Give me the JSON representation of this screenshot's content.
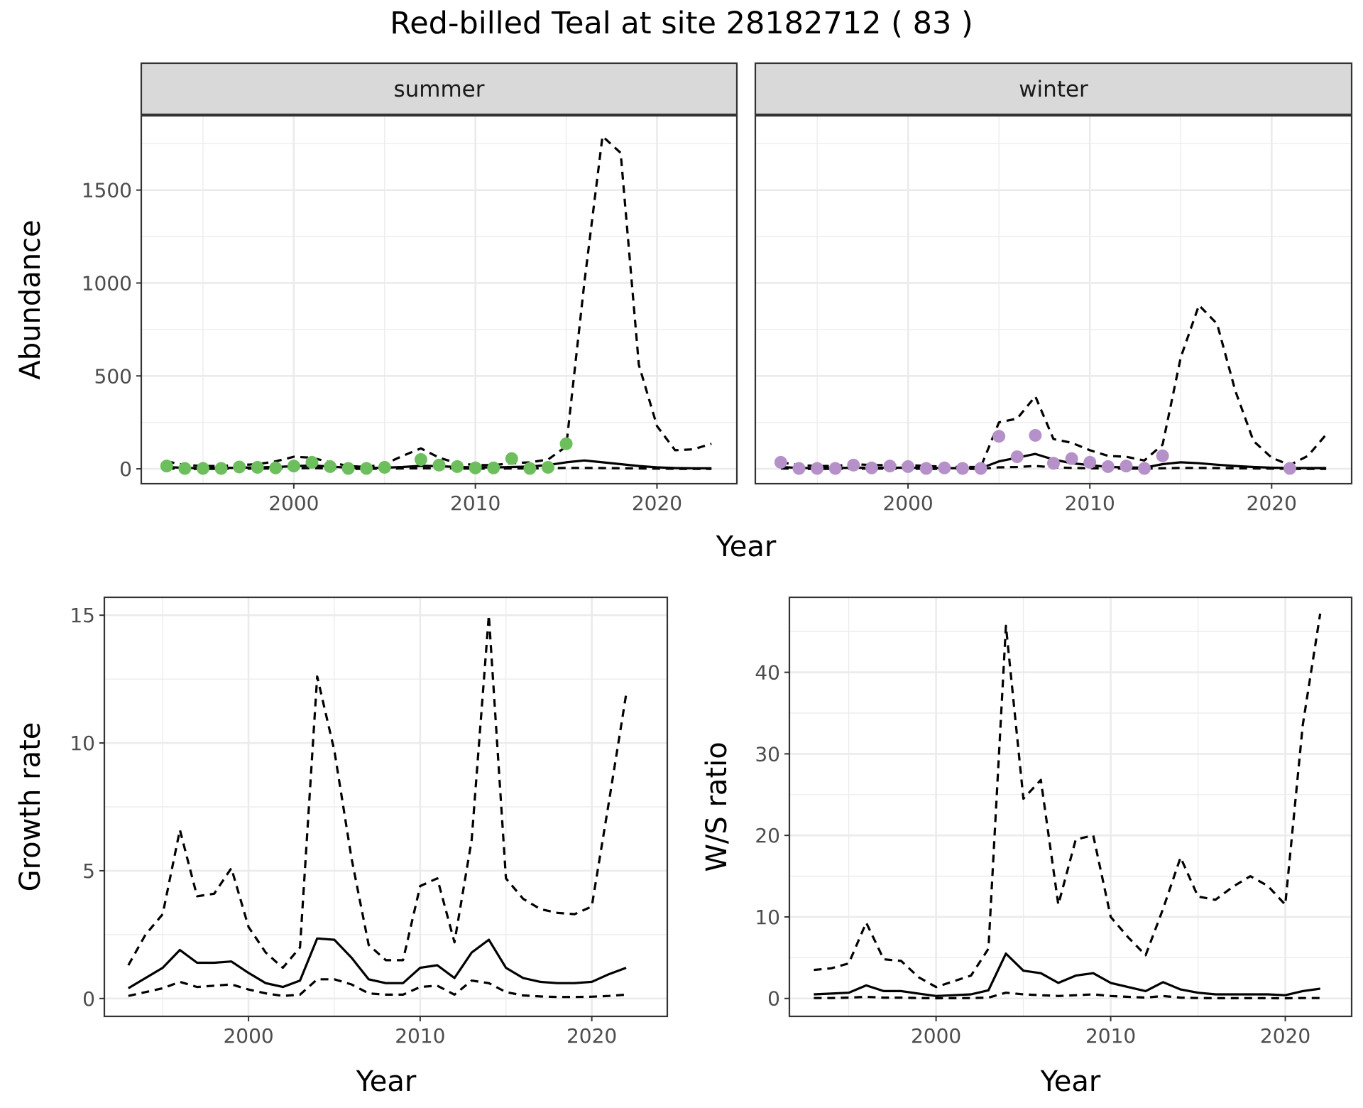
{
  "figure": {
    "title": "Red-billed Teal at site 28182712 ( 83 )"
  },
  "colors": {
    "summer_points": "#6cbf5c",
    "winter_points": "#b590c9",
    "line": "#000000",
    "strip_fill": "#d9d9d9",
    "grid": "#ebebeb",
    "axis_text": "#4d4d4d"
  },
  "chart_data": [
    {
      "type": "line",
      "facet": "summer",
      "strip_label": "summer",
      "ylabel": "Abundance",
      "xlabel": "Year",
      "xlim": [
        1991.6,
        2024.4
      ],
      "ylim": [
        -80,
        1900
      ],
      "x_ticks": [
        2000,
        2010,
        2020
      ],
      "y_ticks": [
        0,
        500,
        1000,
        1500
      ],
      "points": {
        "x": [
          1993,
          1994,
          1995,
          1996,
          1997,
          1998,
          1999,
          2000,
          2001,
          2002,
          2003,
          2004,
          2005,
          2007,
          2008,
          2009,
          2010,
          2011,
          2012,
          2013,
          2014,
          2015
        ],
        "y": [
          15,
          2,
          2,
          2,
          10,
          8,
          5,
          15,
          35,
          12,
          2,
          2,
          8,
          50,
          20,
          12,
          5,
          5,
          55,
          2,
          8,
          135
        ]
      },
      "estimate": {
        "x": [
          1993,
          1994,
          1995,
          1996,
          1997,
          1998,
          1999,
          2000,
          2001,
          2002,
          2003,
          2004,
          2005,
          2006,
          2007,
          2008,
          2009,
          2010,
          2011,
          2012,
          2013,
          2014,
          2015,
          2016,
          2017,
          2018,
          2019,
          2020,
          2021,
          2022,
          2023
        ],
        "y": [
          10,
          5,
          4,
          4,
          6,
          8,
          10,
          14,
          18,
          12,
          6,
          4,
          6,
          10,
          16,
          14,
          10,
          8,
          7,
          10,
          12,
          20,
          35,
          45,
          35,
          25,
          15,
          8,
          4,
          3,
          3
        ]
      },
      "upper": {
        "x": [
          1993,
          1994,
          1995,
          1996,
          1997,
          1998,
          1999,
          2000,
          2001,
          2002,
          2003,
          2004,
          2005,
          2006,
          2007,
          2008,
          2009,
          2010,
          2011,
          2012,
          2013,
          2014,
          2015,
          2016,
          2017,
          2018,
          2019,
          2020,
          2021,
          2022,
          2023
        ],
        "y": [
          40,
          20,
          15,
          15,
          20,
          25,
          40,
          65,
          60,
          35,
          15,
          10,
          25,
          70,
          110,
          60,
          30,
          20,
          20,
          30,
          35,
          50,
          120,
          1000,
          1790,
          1700,
          560,
          230,
          100,
          105,
          135
        ]
      },
      "lower": {
        "x": [
          1993,
          1994,
          1995,
          1996,
          1997,
          1998,
          1999,
          2000,
          2001,
          2002,
          2003,
          2004,
          2005,
          2006,
          2007,
          2008,
          2009,
          2010,
          2011,
          2012,
          2013,
          2014,
          2015,
          2016,
          2017,
          2018,
          2019,
          2020,
          2021,
          2022,
          2023
        ],
        "y": [
          2,
          0,
          0,
          0,
          1,
          1,
          2,
          3,
          4,
          2,
          0,
          0,
          1,
          2,
          3,
          3,
          2,
          1,
          1,
          2,
          2,
          3,
          5,
          5,
          4,
          3,
          2,
          1,
          0,
          0,
          0
        ]
      }
    },
    {
      "type": "line",
      "facet": "winter",
      "strip_label": "winter",
      "ylabel": "Abundance",
      "xlabel": "Year",
      "xlim": [
        1991.6,
        2024.4
      ],
      "ylim": [
        -80,
        1900
      ],
      "x_ticks": [
        2000,
        2010,
        2020
      ],
      "y_ticks": [
        0,
        500,
        1000,
        1500
      ],
      "points": {
        "x": [
          1993,
          1994,
          1995,
          1996,
          1997,
          1998,
          1999,
          2000,
          2001,
          2002,
          2003,
          2004,
          2005,
          2006,
          2007,
          2008,
          2009,
          2010,
          2011,
          2012,
          2013,
          2014,
          2021
        ],
        "y": [
          35,
          2,
          2,
          2,
          20,
          5,
          15,
          12,
          2,
          5,
          2,
          2,
          175,
          65,
          180,
          30,
          55,
          35,
          12,
          15,
          2,
          70,
          2
        ]
      },
      "estimate": {
        "x": [
          1993,
          1994,
          1995,
          1996,
          1997,
          1998,
          1999,
          2000,
          2001,
          2002,
          2003,
          2004,
          2005,
          2006,
          2007,
          2008,
          2009,
          2010,
          2011,
          2012,
          2013,
          2014,
          2015,
          2016,
          2017,
          2018,
          2019,
          2020,
          2021,
          2022,
          2023
        ],
        "y": [
          10,
          5,
          4,
          4,
          6,
          6,
          6,
          6,
          5,
          4,
          3,
          3,
          40,
          60,
          80,
          50,
          30,
          20,
          10,
          8,
          6,
          25,
          35,
          30,
          22,
          15,
          10,
          6,
          4,
          4,
          4
        ]
      },
      "upper": {
        "x": [
          1993,
          1994,
          1995,
          1996,
          1997,
          1998,
          1999,
          2000,
          2001,
          2002,
          2003,
          2004,
          2005,
          2006,
          2007,
          2008,
          2009,
          2010,
          2011,
          2012,
          2013,
          2014,
          2015,
          2016,
          2017,
          2018,
          2019,
          2020,
          2021,
          2022,
          2023
        ],
        "y": [
          35,
          20,
          15,
          15,
          25,
          20,
          20,
          20,
          15,
          12,
          10,
          10,
          250,
          270,
          390,
          160,
          140,
          100,
          70,
          65,
          45,
          130,
          600,
          880,
          780,
          420,
          150,
          60,
          20,
          70,
          185
        ]
      },
      "lower": {
        "x": [
          1993,
          1994,
          1995,
          1996,
          1997,
          1998,
          1999,
          2000,
          2001,
          2002,
          2003,
          2004,
          2005,
          2006,
          2007,
          2008,
          2009,
          2010,
          2011,
          2012,
          2013,
          2014,
          2015,
          2016,
          2017,
          2018,
          2019,
          2020,
          2021,
          2022,
          2023
        ],
        "y": [
          2,
          0,
          0,
          0,
          1,
          1,
          1,
          1,
          0,
          0,
          0,
          0,
          8,
          10,
          15,
          8,
          5,
          3,
          2,
          1,
          1,
          3,
          5,
          5,
          4,
          3,
          2,
          1,
          0,
          0,
          0
        ]
      }
    },
    {
      "type": "line",
      "facet": "growth",
      "ylabel": "Growth rate",
      "xlabel": "Year",
      "xlim": [
        1991.6,
        2024.4
      ],
      "ylim": [
        -0.7,
        15.7
      ],
      "x_ticks": [
        2000,
        2010,
        2020
      ],
      "y_ticks": [
        0,
        5,
        10,
        15
      ],
      "estimate": {
        "x": [
          1993,
          1994,
          1995,
          1996,
          1997,
          1998,
          1999,
          2000,
          2001,
          2002,
          2003,
          2004,
          2005,
          2006,
          2007,
          2008,
          2009,
          2010,
          2011,
          2012,
          2013,
          2014,
          2015,
          2016,
          2017,
          2018,
          2019,
          2020,
          2021,
          2022
        ],
        "y": [
          0.4,
          0.8,
          1.2,
          1.9,
          1.4,
          1.4,
          1.45,
          1.0,
          0.6,
          0.45,
          0.7,
          2.35,
          2.3,
          1.6,
          0.75,
          0.6,
          0.6,
          1.2,
          1.3,
          0.8,
          1.8,
          2.3,
          1.2,
          0.8,
          0.65,
          0.6,
          0.6,
          0.65,
          0.95,
          1.2
        ]
      },
      "upper": {
        "x": [
          1993,
          1994,
          1995,
          1996,
          1997,
          1998,
          1999,
          2000,
          2001,
          2002,
          2003,
          2004,
          2005,
          2006,
          2007,
          2008,
          2009,
          2010,
          2011,
          2012,
          2013,
          2014,
          2015,
          2016,
          2017,
          2018,
          2019,
          2020,
          2021,
          2022
        ],
        "y": [
          1.3,
          2.5,
          3.3,
          6.6,
          4.0,
          4.1,
          5.1,
          2.8,
          1.8,
          1.2,
          2.0,
          12.6,
          9.7,
          5.5,
          2.1,
          1.5,
          1.5,
          4.4,
          4.7,
          2.2,
          6.2,
          15.0,
          4.7,
          3.9,
          3.5,
          3.35,
          3.3,
          3.6,
          7.7,
          11.9
        ]
      },
      "lower": {
        "x": [
          1993,
          1994,
          1995,
          1996,
          1997,
          1998,
          1999,
          2000,
          2001,
          2002,
          2003,
          2004,
          2005,
          2006,
          2007,
          2008,
          2009,
          2010,
          2011,
          2012,
          2013,
          2014,
          2015,
          2016,
          2017,
          2018,
          2019,
          2020,
          2021,
          2022
        ],
        "y": [
          0.1,
          0.25,
          0.4,
          0.65,
          0.45,
          0.5,
          0.55,
          0.35,
          0.2,
          0.1,
          0.15,
          0.75,
          0.75,
          0.55,
          0.2,
          0.15,
          0.15,
          0.45,
          0.5,
          0.15,
          0.7,
          0.6,
          0.25,
          0.12,
          0.08,
          0.06,
          0.06,
          0.07,
          0.1,
          0.15
        ]
      }
    },
    {
      "type": "line",
      "facet": "ratio",
      "ylabel": "W/S ratio",
      "xlabel": "Year",
      "xlim": [
        1991.6,
        2023.8
      ],
      "ylim": [
        -2.2,
        49.2
      ],
      "x_ticks": [
        2000,
        2010,
        2020
      ],
      "y_ticks": [
        0,
        10,
        20,
        30,
        40
      ],
      "estimate": {
        "x": [
          1993,
          1994,
          1995,
          1996,
          1997,
          1998,
          1999,
          2000,
          2001,
          2002,
          2003,
          2004,
          2005,
          2006,
          2007,
          2008,
          2009,
          2010,
          2011,
          2012,
          2013,
          2014,
          2015,
          2016,
          2017,
          2018,
          2019,
          2020,
          2021,
          2022
        ],
        "y": [
          0.5,
          0.6,
          0.7,
          1.6,
          0.9,
          0.9,
          0.6,
          0.3,
          0.4,
          0.5,
          1.0,
          5.5,
          3.4,
          3.1,
          1.9,
          2.8,
          3.1,
          1.9,
          1.4,
          0.9,
          2.0,
          1.1,
          0.7,
          0.5,
          0.5,
          0.5,
          0.5,
          0.4,
          0.9,
          1.2
        ]
      },
      "upper": {
        "x": [
          1993,
          1994,
          1995,
          1996,
          1997,
          1998,
          1999,
          2000,
          2001,
          2002,
          2003,
          2004,
          2005,
          2006,
          2007,
          2008,
          2009,
          2010,
          2011,
          2012,
          2013,
          2014,
          2015,
          2016,
          2017,
          2018,
          2019,
          2020,
          2021,
          2022
        ],
        "y": [
          3.5,
          3.7,
          4.3,
          9.3,
          4.8,
          4.6,
          2.6,
          1.4,
          2.1,
          2.8,
          6.1,
          45.7,
          24.5,
          26.8,
          11.5,
          19.5,
          20.0,
          10.0,
          7.5,
          5.3,
          11.0,
          17.3,
          12.5,
          12.1,
          13.7,
          15.0,
          13.8,
          11.5,
          33.5,
          47.2
        ]
      },
      "lower": {
        "x": [
          1993,
          1994,
          1995,
          1996,
          1997,
          1998,
          1999,
          2000,
          2001,
          2002,
          2003,
          2004,
          2005,
          2006,
          2007,
          2008,
          2009,
          2010,
          2011,
          2012,
          2013,
          2014,
          2015,
          2016,
          2017,
          2018,
          2019,
          2020,
          2021,
          2022
        ],
        "y": [
          0.05,
          0.05,
          0.1,
          0.2,
          0.1,
          0.1,
          0.05,
          0.02,
          0.03,
          0.05,
          0.1,
          0.7,
          0.5,
          0.4,
          0.3,
          0.4,
          0.5,
          0.3,
          0.2,
          0.1,
          0.3,
          0.1,
          0.05,
          0.03,
          0.03,
          0.03,
          0.03,
          0.02,
          0.05,
          0.05
        ]
      }
    }
  ]
}
